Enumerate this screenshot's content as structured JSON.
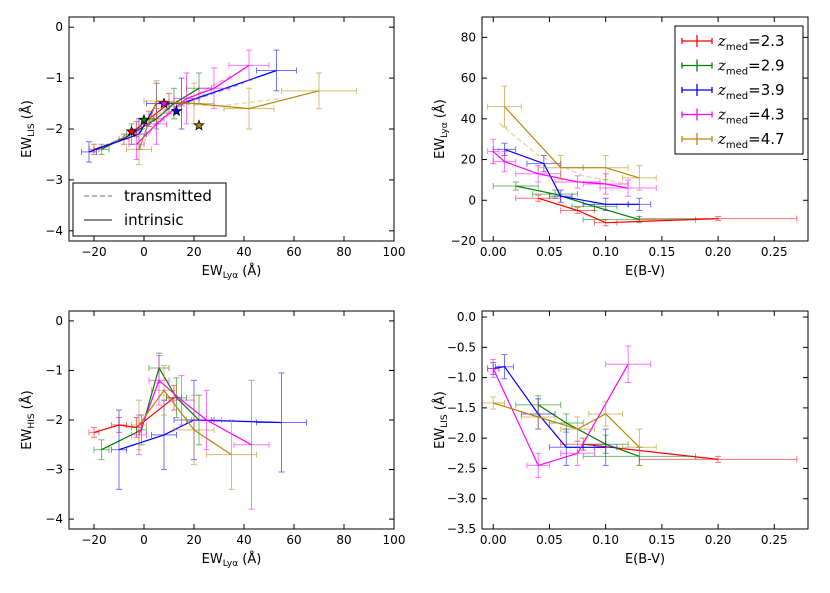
{
  "colors": {
    "z2.3": "#ff0000",
    "z2.9": "#008000",
    "z3.9": "#0000ff",
    "z4.3": "#ff00ff",
    "z4.7": "#b8860b"
  },
  "legend_panel2": {
    "prefix": "z",
    "subscript": "med",
    "entries": [
      {
        "key": "z2.3",
        "value": "=2.3"
      },
      {
        "key": "z2.9",
        "value": "=2.9"
      },
      {
        "key": "z3.9",
        "value": "=3.9"
      },
      {
        "key": "z4.3",
        "value": "=4.3"
      },
      {
        "key": "z4.7",
        "value": "=4.7"
      }
    ]
  },
  "legend_panel1": {
    "entries": [
      {
        "label": "transmitted",
        "style": "dashed"
      },
      {
        "label": "intrinsic",
        "style": "solid"
      }
    ]
  },
  "chart_data": [
    {
      "id": "p1",
      "type": "line",
      "xlabel": {
        "base": "EW",
        "sub": "Lyα",
        "unit": " (Å)"
      },
      "ylabel": {
        "base": "EW",
        "sub": "LIS",
        "unit": " (Å)"
      },
      "xlim": [
        -30,
        100
      ],
      "ylim": [
        -4.2,
        0.2
      ],
      "xticks": [
        -20,
        0,
        20,
        40,
        60,
        80,
        100
      ],
      "xticklabels": [
        "−20",
        "0",
        "20",
        "40",
        "60",
        "80",
        "100"
      ],
      "yticks": [
        -4,
        -3,
        -2,
        -1,
        0
      ],
      "yticklabels": [
        "−4",
        "−3",
        "−2",
        "−1",
        "0"
      ],
      "series": [
        {
          "key": "z2.3",
          "style": "solid",
          "points": [
            [
              -20,
              -2.4,
              2,
              0.1
            ],
            [
              -8,
              -2.2,
              2,
              0.1
            ],
            [
              -3,
              -2.0,
              2,
              0.15
            ],
            [
              2,
              -1.8,
              2,
              0.15
            ],
            [
              10,
              -1.5,
              3,
              0.2
            ]
          ],
          "transmitted": [
            [
              -20,
              -2.4
            ],
            [
              -8,
              -2.2
            ],
            [
              0,
              -1.9
            ],
            [
              12,
              -1.5
            ]
          ]
        },
        {
          "key": "z2.9",
          "style": "solid",
          "points": [
            [
              -17,
              -2.4,
              3,
              0.1
            ],
            [
              -5,
              -2.1,
              2,
              0.2
            ],
            [
              5,
              -1.8,
              3,
              0.2
            ],
            [
              12,
              -1.5,
              4,
              0.3
            ],
            [
              22,
              -1.2,
              5,
              0.3
            ]
          ],
          "transmitted": [
            [
              -17,
              -2.4
            ],
            [
              -5,
              -2.05
            ],
            [
              8,
              -1.7
            ],
            [
              25,
              -1.3
            ]
          ]
        },
        {
          "key": "z3.9",
          "style": "solid",
          "points": [
            [
              -22,
              -2.45,
              3,
              0.2
            ],
            [
              -2,
              -2.1,
              3,
              0.3
            ],
            [
              5,
              -1.5,
              4,
              0.4
            ],
            [
              15,
              -1.5,
              5,
              0.5
            ],
            [
              53,
              -0.85,
              8,
              0.4
            ]
          ],
          "transmitted": [
            [
              -22,
              -2.45
            ],
            [
              0,
              -2.0
            ],
            [
              10,
              -1.6
            ],
            [
              40,
              -1.1
            ]
          ]
        },
        {
          "key": "z4.3",
          "style": "solid",
          "points": [
            [
              -3,
              -2.3,
              3,
              0.3
            ],
            [
              5,
              -1.9,
              4,
              0.4
            ],
            [
              17,
              -1.4,
              5,
              0.5
            ],
            [
              28,
              -1.2,
              6,
              0.4
            ],
            [
              42,
              -0.75,
              8,
              0.3
            ]
          ],
          "transmitted": [
            [
              -3,
              -2.3
            ],
            [
              8,
              -1.8
            ],
            [
              20,
              -1.35
            ],
            [
              35,
              -0.95
            ]
          ]
        },
        {
          "key": "z4.7",
          "style": "solid",
          "points": [
            [
              -2,
              -2.4,
              5,
              0.3
            ],
            [
              5,
              -1.45,
              5,
              0.4
            ],
            [
              20,
              -1.5,
              8,
              0.4
            ],
            [
              42,
              -1.6,
              10,
              0.4
            ],
            [
              70,
              -1.25,
              15,
              0.35
            ]
          ],
          "transmitted": [
            [
              -2,
              -2.4
            ],
            [
              10,
              -1.5
            ],
            [
              30,
              -1.55
            ],
            [
              55,
              -1.4
            ]
          ]
        }
      ],
      "stars": [
        {
          "key": "z2.3",
          "x": -5,
          "y": -2.05
        },
        {
          "key": "z2.9",
          "x": 0,
          "y": -1.82
        },
        {
          "key": "z3.9",
          "x": 13,
          "y": -1.65
        },
        {
          "key": "z4.3",
          "x": 8,
          "y": -1.5
        },
        {
          "key": "z4.7",
          "x": 22,
          "y": -1.93
        }
      ]
    },
    {
      "id": "p2",
      "type": "line",
      "xlabel": {
        "base": "E(B-V)",
        "sub": "",
        "unit": ""
      },
      "ylabel": {
        "base": "EW",
        "sub": "Lyα",
        "unit": " (Å)"
      },
      "xlim": [
        -0.01,
        0.28
      ],
      "ylim": [
        -20,
        90
      ],
      "xticks": [
        0.0,
        0.05,
        0.1,
        0.15,
        0.2,
        0.25
      ],
      "xticklabels": [
        "0.00",
        "0.05",
        "0.10",
        "0.15",
        "0.20",
        "0.25"
      ],
      "yticks": [
        -20,
        0,
        20,
        40,
        60,
        80
      ],
      "yticklabels": [
        "−20",
        "0",
        "20",
        "40",
        "60",
        "80"
      ],
      "series": [
        {
          "key": "z2.3",
          "points": [
            [
              0.04,
              1,
              0.02,
              1.5
            ],
            [
              0.075,
              -5,
              0.015,
              1.5
            ],
            [
              0.1,
              -11,
              0.01,
              1.5
            ],
            [
              0.2,
              -9,
              0.07,
              1
            ]
          ]
        },
        {
          "key": "z2.9",
          "points": [
            [
              0.02,
              7,
              0.02,
              2
            ],
            [
              0.055,
              3,
              0.02,
              2
            ],
            [
              0.09,
              -3,
              0.02,
              2
            ],
            [
              0.13,
              -9.5,
              0.05,
              1.5
            ]
          ]
        },
        {
          "key": "z3.9",
          "points": [
            [
              0.01,
              25,
              0.01,
              3
            ],
            [
              0.045,
              18,
              0.015,
              4
            ],
            [
              0.06,
              2,
              0.01,
              3
            ],
            [
              0.1,
              -2,
              0.02,
              3
            ],
            [
              0.13,
              -2,
              0.01,
              3
            ]
          ]
        },
        {
          "key": "z4.3",
          "points": [
            [
              0.0,
              24,
              0.005,
              6
            ],
            [
              0.01,
              19,
              0.01,
              5
            ],
            [
              0.04,
              13,
              0.02,
              4
            ],
            [
              0.075,
              9,
              0.02,
              3
            ],
            [
              0.1,
              8,
              0.02,
              5
            ],
            [
              0.12,
              6,
              0.025,
              4
            ]
          ]
        },
        {
          "key": "z4.7",
          "points": [
            [
              0.01,
              46,
              0.015,
              10
            ],
            [
              0.06,
              16,
              0.02,
              6
            ],
            [
              0.1,
              16,
              0.02,
              6
            ],
            [
              0.13,
              11,
              0.015,
              6
            ]
          ],
          "transmitted": [
            [
              0.005,
              38
            ],
            [
              0.04,
              22
            ],
            [
              0.08,
              12
            ],
            [
              0.12,
              8
            ]
          ]
        }
      ]
    },
    {
      "id": "p3",
      "type": "line",
      "xlabel": {
        "base": "EW",
        "sub": "Lyα",
        "unit": " (Å)"
      },
      "ylabel": {
        "base": "EW",
        "sub": "HIS",
        "unit": " (Å)"
      },
      "xlim": [
        -30,
        100
      ],
      "ylim": [
        -4.2,
        0.2
      ],
      "xticks": [
        -20,
        0,
        20,
        40,
        60,
        80,
        100
      ],
      "xticklabels": [
        "−20",
        "0",
        "20",
        "40",
        "60",
        "80",
        "100"
      ],
      "yticks": [
        -4,
        -3,
        -2,
        -1,
        0
      ],
      "yticklabels": [
        "−4",
        "−3",
        "−2",
        "−1",
        "0"
      ],
      "series": [
        {
          "key": "z2.3",
          "points": [
            [
              -20,
              -2.25,
              2,
              0.1
            ],
            [
              -10,
              -2.1,
              3,
              0.15
            ],
            [
              -3,
              -2.15,
              2,
              0.2
            ],
            [
              12,
              -1.55,
              3,
              0.25
            ]
          ]
        },
        {
          "key": "z2.9",
          "points": [
            [
              -17,
              -2.6,
              3,
              0.2
            ],
            [
              -1,
              -2.2,
              2,
              0.3
            ],
            [
              6,
              -0.95,
              4,
              0.3
            ],
            [
              13,
              -1.55,
              4,
              0.4
            ],
            [
              22,
              -2.0,
              5,
              0.5
            ]
          ]
        },
        {
          "key": "z3.9",
          "points": [
            [
              -10,
              -2.6,
              3,
              0.8
            ],
            [
              8,
              -2.3,
              5,
              0.7
            ],
            [
              20,
              -2.0,
              8,
              0.8
            ],
            [
              55,
              -2.05,
              10,
              1.0
            ]
          ]
        },
        {
          "key": "z4.3",
          "points": [
            [
              -2,
              -2.3,
              3,
              0.4
            ],
            [
              6,
              -1.2,
              4,
              0.5
            ],
            [
              15,
              -1.6,
              5,
              0.5
            ],
            [
              25,
              -2.0,
              6,
              0.6
            ],
            [
              43,
              -2.5,
              7,
              1.3
            ]
          ]
        },
        {
          "key": "z4.7",
          "points": [
            [
              -2,
              -2.1,
              3,
              0.5
            ],
            [
              8,
              -1.4,
              5,
              0.5
            ],
            [
              20,
              -2.2,
              8,
              0.7
            ],
            [
              35,
              -2.7,
              10,
              0.7
            ]
          ]
        }
      ]
    },
    {
      "id": "p4",
      "type": "line",
      "xlabel": {
        "base": "E(B-V)",
        "sub": "",
        "unit": ""
      },
      "ylabel": {
        "base": "EW",
        "sub": "LIS",
        "unit": " (Å)"
      },
      "xlim": [
        -0.01,
        0.28
      ],
      "ylim": [
        -3.5,
        0.1
      ],
      "xticks": [
        0.0,
        0.05,
        0.1,
        0.15,
        0.2,
        0.25
      ],
      "xticklabels": [
        "0.00",
        "0.05",
        "0.10",
        "0.15",
        "0.20",
        "0.25"
      ],
      "yticks": [
        -3.5,
        -3.0,
        -2.5,
        -2.0,
        -1.5,
        -1.0,
        -0.5,
        0.0
      ],
      "yticklabels": [
        "−3.5",
        "−3.0",
        "−2.5",
        "−2.0",
        "−1.5",
        "−1.0",
        "−0.5",
        "0.0"
      ],
      "series": [
        {
          "key": "z2.3",
          "points": [
            [
              0.08,
              -2.1,
              0.02,
              0.1
            ],
            [
              0.2,
              -2.35,
              0.07,
              0.05
            ]
          ]
        },
        {
          "key": "z2.9",
          "points": [
            [
              0.04,
              -1.45,
              0.02,
              0.15
            ],
            [
              0.065,
              -1.75,
              0.015,
              0.15
            ],
            [
              0.1,
              -2.1,
              0.02,
              0.15
            ],
            [
              0.13,
              -2.3,
              0.05,
              0.15
            ]
          ]
        },
        {
          "key": "z3.9",
          "points": [
            [
              0.0,
              -0.85,
              0.005,
              0.1
            ],
            [
              0.01,
              -0.82,
              0.008,
              0.2
            ],
            [
              0.04,
              -1.6,
              0.015,
              0.25
            ],
            [
              0.065,
              -2.15,
              0.015,
              0.3
            ],
            [
              0.1,
              -2.15,
              0.01,
              0.3
            ]
          ]
        },
        {
          "key": "z4.3",
          "points": [
            [
              0.0,
              -0.85,
              0.005,
              0.15
            ],
            [
              0.04,
              -2.45,
              0.01,
              0.2
            ],
            [
              0.075,
              -2.25,
              0.015,
              0.2
            ],
            [
              0.12,
              -0.78,
              0.02,
              0.3
            ]
          ]
        },
        {
          "key": "z4.7",
          "points": [
            [
              0.0,
              -1.42,
              0.01,
              0.1
            ],
            [
              0.04,
              -1.65,
              0.015,
              0.2
            ],
            [
              0.075,
              -1.85,
              0.015,
              0.2
            ],
            [
              0.1,
              -1.6,
              0.015,
              0.2
            ],
            [
              0.13,
              -2.15,
              0.015,
              0.3
            ]
          ]
        }
      ]
    }
  ]
}
